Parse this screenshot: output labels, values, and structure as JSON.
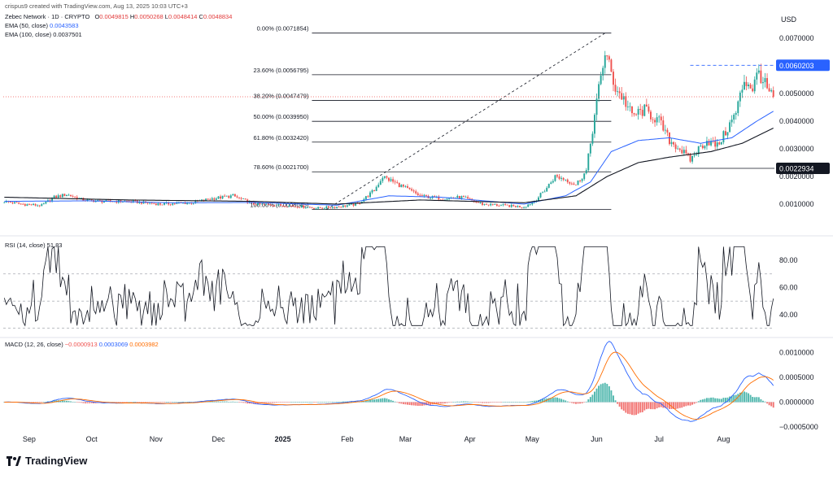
{
  "header": {
    "created_by": "crispus9 created with TradingView.com, Aug 13, 2025 10:03 UTC+3",
    "symbol": "Zebec Network · 1D · CRYPTO",
    "ohlc": {
      "o_label": "O",
      "o": "0.0049815",
      "h_label": "H",
      "h": "0.0050268",
      "l_label": "L",
      "l": "0.0048414",
      "c_label": "C",
      "c": "0.0048834"
    },
    "ema50": {
      "label": "EMA (50, close)",
      "value": "0.0043583"
    },
    "ema100": {
      "label": "EMA (100, close)",
      "value": "0.0037501"
    }
  },
  "currency": "USD",
  "price_badges": {
    "resistance": "0.0060203",
    "support": "0.0022934"
  },
  "colors": {
    "up": "#26a69a",
    "down": "#ef5350",
    "ema50": "#2962ff",
    "ema100": "#131722",
    "macd": "#2962ff",
    "signal": "#ff6d00",
    "badge_blue": "#2962ff",
    "badge_dark": "#131722"
  },
  "rsi_label": "RSI (14, close)  51.83",
  "macd_label": {
    "name": "MACD (12, 26, close)",
    "hist": "−0.0000913",
    "macd": "0.0003069",
    "signal": "0.0003982"
  },
  "logo_text": "TradingView",
  "chart_data": [
    {
      "type": "candlestick",
      "title": "Zebec Network · 1D · CRYPTO",
      "ylabel": "USD",
      "x_ticks": [
        "Sep",
        "Oct",
        "Nov",
        "Dec",
        "2025",
        "Feb",
        "Mar",
        "Apr",
        "May",
        "Jun",
        "Jul",
        "Aug"
      ],
      "y_ticks": [
        "0.0070000",
        "0.0060000",
        "0.0050000",
        "0.0040000",
        "0.0030000",
        "0.0020000",
        "0.0010000"
      ],
      "ylim": [
        0,
        0.0075
      ],
      "close_anchor": [
        [
          0,
          0.0011
        ],
        [
          8,
          0.001
        ],
        [
          18,
          0.00095
        ],
        [
          24,
          0.00125
        ],
        [
          30,
          0.00135
        ],
        [
          38,
          0.00115
        ],
        [
          48,
          0.0011
        ],
        [
          60,
          0.0011
        ],
        [
          75,
          0.001
        ],
        [
          90,
          0.00105
        ],
        [
          100,
          0.0012
        ],
        [
          110,
          0.0013
        ],
        [
          120,
          0.001
        ],
        [
          135,
          0.00095
        ],
        [
          145,
          0.0009
        ],
        [
          150,
          0.00085
        ],
        [
          160,
          0.0009
        ],
        [
          170,
          0.001
        ],
        [
          178,
          0.0015
        ],
        [
          182,
          0.002
        ],
        [
          186,
          0.00185
        ],
        [
          195,
          0.0015
        ],
        [
          200,
          0.0013
        ],
        [
          210,
          0.0012
        ],
        [
          220,
          0.00125
        ],
        [
          230,
          0.001
        ],
        [
          240,
          0.00095
        ],
        [
          250,
          0.0009
        ],
        [
          255,
          0.0011
        ],
        [
          260,
          0.0015
        ],
        [
          265,
          0.002
        ],
        [
          270,
          0.0019
        ],
        [
          275,
          0.0017
        ],
        [
          280,
          0.0022
        ],
        [
          284,
          0.0042
        ],
        [
          287,
          0.0056
        ],
        [
          289,
          0.0065
        ],
        [
          291,
          0.006
        ],
        [
          294,
          0.0052
        ],
        [
          298,
          0.0048
        ],
        [
          302,
          0.0042
        ],
        [
          308,
          0.0044
        ],
        [
          315,
          0.004
        ],
        [
          320,
          0.0033
        ],
        [
          325,
          0.003
        ],
        [
          330,
          0.0026
        ],
        [
          334,
          0.003
        ],
        [
          338,
          0.0033
        ],
        [
          343,
          0.0031
        ],
        [
          347,
          0.0036
        ],
        [
          352,
          0.0043
        ],
        [
          356,
          0.0055
        ],
        [
          360,
          0.0052
        ],
        [
          363,
          0.0058
        ],
        [
          366,
          0.0053
        ],
        [
          368,
          0.005
        ],
        [
          370,
          0.0049
        ]
      ],
      "ema50_anchor": [
        [
          0,
          0.0011
        ],
        [
          40,
          0.00112
        ],
        [
          80,
          0.00105
        ],
        [
          120,
          0.00106
        ],
        [
          160,
          0.00096
        ],
        [
          185,
          0.0013
        ],
        [
          210,
          0.00125
        ],
        [
          250,
          0.001
        ],
        [
          270,
          0.0013
        ],
        [
          282,
          0.0018
        ],
        [
          292,
          0.0029
        ],
        [
          305,
          0.0033
        ],
        [
          320,
          0.0034
        ],
        [
          335,
          0.0032
        ],
        [
          350,
          0.0034
        ],
        [
          362,
          0.004
        ],
        [
          370,
          0.00436
        ]
      ],
      "ema100_anchor": [
        [
          0,
          0.00125
        ],
        [
          60,
          0.00115
        ],
        [
          120,
          0.0011
        ],
        [
          160,
          0.001
        ],
        [
          200,
          0.00115
        ],
        [
          250,
          0.00105
        ],
        [
          275,
          0.0013
        ],
        [
          290,
          0.002
        ],
        [
          305,
          0.0025
        ],
        [
          320,
          0.0027
        ],
        [
          340,
          0.0029
        ],
        [
          355,
          0.0032
        ],
        [
          370,
          0.00375
        ]
      ],
      "fibonacci": [
        {
          "label": "0.00% (0.0071854)",
          "value": 0.0071854
        },
        {
          "label": "23.60% (0.0056795)",
          "value": 0.0056795
        },
        {
          "label": "38.20% (0.0047479)",
          "value": 0.0047479
        },
        {
          "label": "50.00% (0.0039950)",
          "value": 0.003995
        },
        {
          "label": "61.80% (0.0032420)",
          "value": 0.003242
        },
        {
          "label": "78.60% (0.0021700)",
          "value": 0.00217
        },
        {
          "label": "100.00% (0.0008045)",
          "value": 0.0008045
        }
      ],
      "current_price": 0.0048834,
      "resistance": 0.0060203,
      "support": 0.0022934
    },
    {
      "type": "line",
      "title": "RSI (14, close)",
      "y_ticks": [
        "80.00",
        "60.00",
        "40.00"
      ],
      "ylim": [
        25,
        95
      ],
      "bands": [
        70,
        50,
        30
      ],
      "latest": 51.83
    },
    {
      "type": "line",
      "title": "MACD (12, 26, close)",
      "y_ticks": [
        "0.0010000",
        "0.0005000",
        "0.0000000",
        "−0.0005000"
      ],
      "ylim": [
        -0.00058,
        0.00125
      ],
      "series": [
        {
          "name": "MACD",
          "latest": 0.0003069
        },
        {
          "name": "Signal",
          "latest": 0.0003982
        },
        {
          "name": "Histogram",
          "latest": -9.13e-05
        }
      ]
    }
  ]
}
